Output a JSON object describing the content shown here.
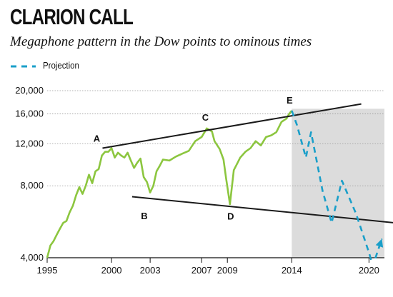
{
  "title": "CLARION CALL",
  "subtitle": "Megaphone pattern in the Dow points to ominous times",
  "legend": {
    "projection_label": "Projection"
  },
  "colors": {
    "actual_series": "#8cc63f",
    "projection_series": "#1a9fc9",
    "trendlines": "#1a1a1a",
    "projection_zone": "#dcdcdc"
  },
  "chart_data": {
    "type": "line",
    "title": "CLARION CALL",
    "subtitle": "Megaphone pattern in the Dow points to ominous times",
    "xlabel": "",
    "ylabel": "",
    "y_scale": "log",
    "xlim": [
      1995,
      2021.2
    ],
    "ylim": [
      4000,
      20000
    ],
    "x_ticks": [
      1995,
      2000,
      2003,
      2007,
      2009,
      2014,
      2020
    ],
    "x_tick_labels": [
      "1995",
      "2000",
      "2003",
      "2007",
      "2009",
      "2014",
      "2020"
    ],
    "y_ticks": [
      4000,
      8000,
      12000,
      16000,
      20000
    ],
    "y_tick_labels": [
      "4,000",
      "8,000",
      "12,000",
      "16,000",
      "20,000"
    ],
    "grid": {
      "horizontal": true,
      "vertical": false
    },
    "legend": "top-left",
    "projection_zone": {
      "x_start": 2014,
      "x_end": 2021.2
    },
    "series": [
      {
        "x": [
          1995.0,
          1995.25,
          1995.5,
          1995.75,
          1996.0,
          1996.25,
          1996.5,
          1996.75,
          1997.0,
          1997.25,
          1997.5,
          1997.75,
          1998.0,
          1998.25,
          1998.5,
          1998.75,
          1999.0,
          1999.25,
          1999.5,
          1999.75,
          2000.0,
          2000.25,
          2000.5,
          2000.75,
          2001.0,
          2001.25,
          2001.5,
          2001.75,
          2002.0,
          2002.25,
          2002.5,
          2002.75,
          2003.0,
          2003.25,
          2003.5,
          2003.75,
          2004.0,
          2004.5,
          2005.0,
          2005.5,
          2006.0,
          2006.5,
          2007.0,
          2007.4,
          2007.8,
          2008.0,
          2008.4,
          2008.7,
          2008.9,
          2009.2,
          2009.5,
          2009.8,
          2010.0,
          2010.4,
          2010.8,
          2011.2,
          2011.6,
          2012.0,
          2012.4,
          2012.8,
          2013.2,
          2013.6,
          2013.8,
          2014.0
        ],
        "values": [
          4000,
          4500,
          4700,
          5000,
          5300,
          5600,
          5700,
          6200,
          6600,
          7300,
          7900,
          7400,
          8000,
          8900,
          8200,
          9200,
          9400,
          10700,
          11100,
          11100,
          11500,
          10500,
          11000,
          10700,
          10500,
          11000,
          10200,
          9500,
          10000,
          10400,
          8700,
          8300,
          7500,
          8000,
          9200,
          9700,
          10300,
          10200,
          10600,
          10900,
          11200,
          12300,
          12800,
          13900,
          13500,
          12300,
          11400,
          10300,
          8600,
          6700,
          9300,
          10000,
          10500,
          11100,
          11500,
          12300,
          11800,
          12800,
          13000,
          13400,
          14800,
          15300,
          16000,
          16500
        ]
      },
      {
        "name": "Projection",
        "x": [
          2014.0,
          2014.4,
          2015.1,
          2015.5,
          2016.4,
          2017.1,
          2017.9,
          2019.0,
          2020.0,
          2020.3,
          2021.0
        ],
        "values": [
          16500,
          14400,
          10500,
          13400,
          7600,
          5600,
          8400,
          6100,
          4200,
          3700,
          4800
        ]
      }
    ],
    "trendlines": [
      {
        "name": "upper",
        "x": [
          1999.3,
          2019.4
        ],
        "values": [
          11500,
          17600
        ]
      },
      {
        "name": "lower",
        "x": [
          2001.6,
          2022.0
        ],
        "values": [
          7200,
          5600
        ]
      }
    ],
    "annotations": [
      {
        "text": "A",
        "x": 1999.3,
        "value": 11500
      },
      {
        "text": "B",
        "x": 2002.6,
        "value": 6700
      },
      {
        "text": "C",
        "x": 2007.4,
        "value": 13900
      },
      {
        "text": "D",
        "x": 2009.2,
        "value": 6500
      },
      {
        "text": "E",
        "x": 2014.0,
        "value": 16500
      }
    ]
  }
}
